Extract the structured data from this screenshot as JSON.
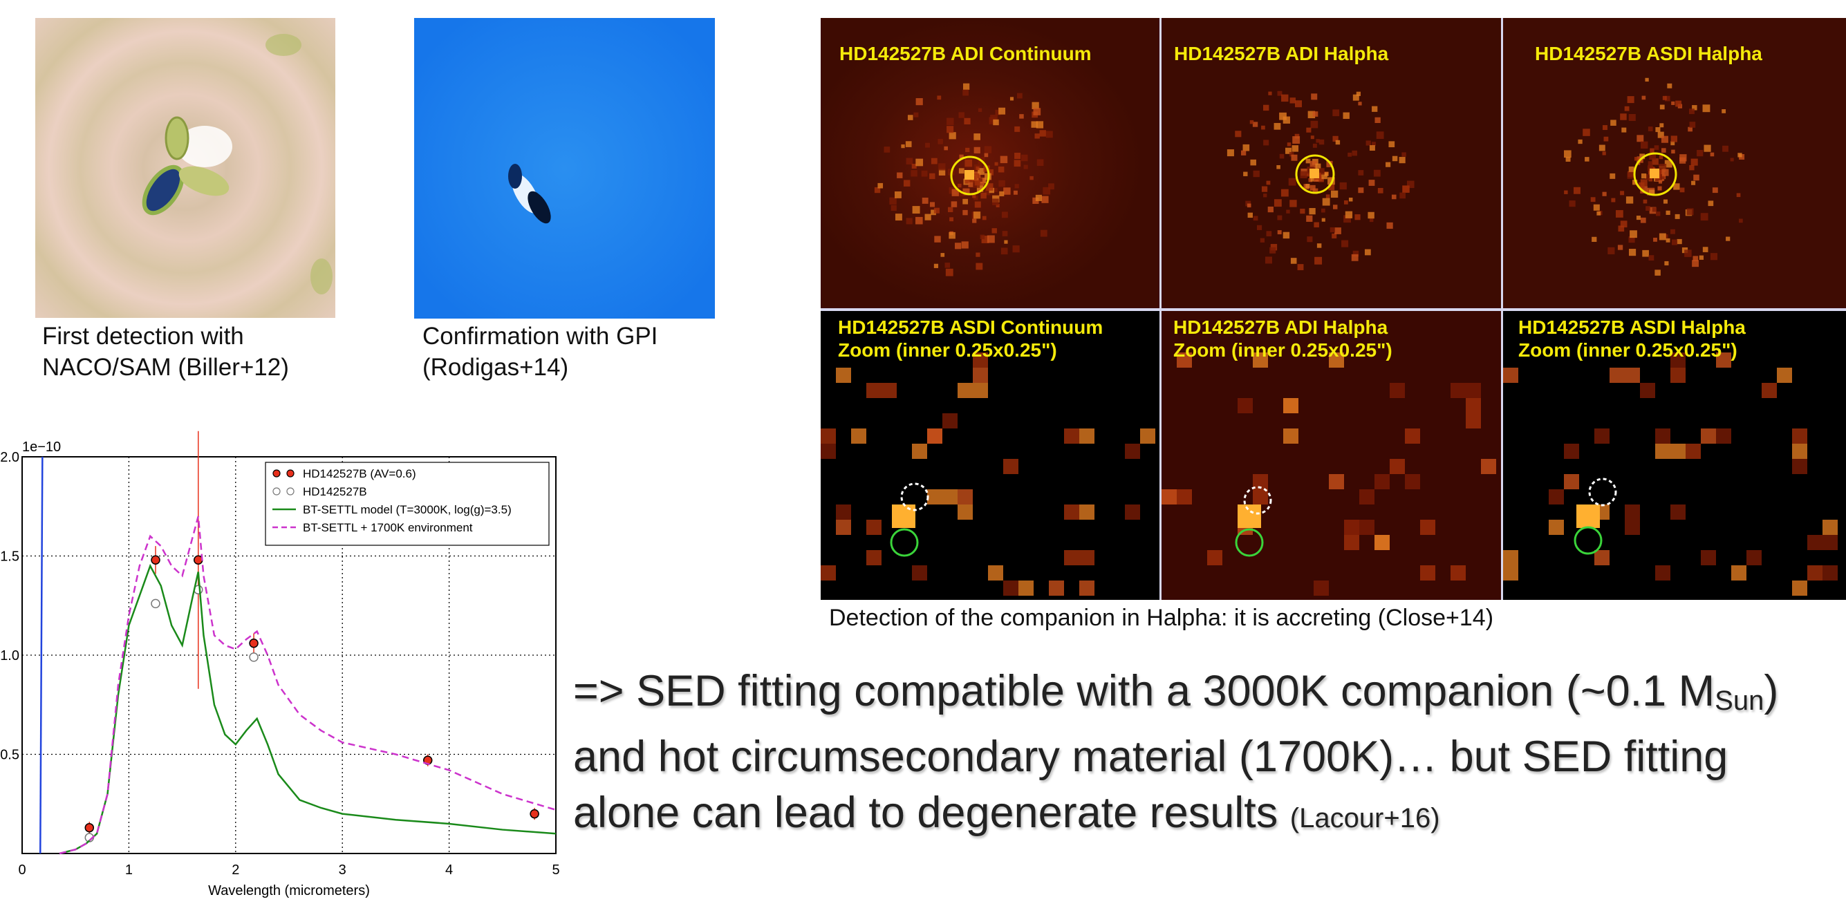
{
  "images_left": [
    {
      "caption": [
        "First detection with",
        "NACO/SAM (Biller+12)"
      ]
    },
    {
      "caption": [
        "Confirmation with GPI",
        "(Rodigas+14)"
      ]
    }
  ],
  "images_right": {
    "panels": [
      {
        "label": [
          "HD142527B ADI Continuum"
        ]
      },
      {
        "label": [
          "HD142527B ADI Halpha"
        ]
      },
      {
        "label": [
          "HD142527B ASDI Halpha"
        ]
      },
      {
        "label": [
          "HD142527B ASDI Continuum",
          "Zoom (inner 0.25x0.25\")"
        ]
      },
      {
        "label": [
          "HD142527B ADI Halpha",
          "Zoom (inner 0.25x0.25\")"
        ]
      },
      {
        "label": [
          "HD142527B ASDI Halpha",
          "Zoom (inner 0.25x0.25\")"
        ]
      }
    ],
    "caption": "Detection of the companion in Halpha: it is accreting (Close+14)"
  },
  "chart_data": {
    "type": "line",
    "x_label": "Wavelength (micrometers)",
    "y_offset_label": "1e−10",
    "xlim": [
      0,
      5
    ],
    "ylim": [
      0,
      2.0
    ],
    "xticks": [
      0,
      1,
      2,
      3,
      4,
      5
    ],
    "yticks": [
      {
        "value": 0.5,
        "label": "0.5"
      },
      {
        "value": 1.0,
        "label": "1.0"
      },
      {
        "value": 1.5,
        "label": "1.5"
      },
      {
        "value": 2.0,
        "label": "2.0"
      }
    ],
    "grid": true,
    "legend": "upper right",
    "series": [
      {
        "name": "HD142527B (AV=0.6)",
        "style": "points",
        "color": "#e8301c",
        "x": [
          0.63,
          1.25,
          1.65,
          2.17,
          3.8,
          4.8
        ],
        "values": [
          0.13,
          1.48,
          1.48,
          1.06,
          0.47,
          0.2
        ],
        "errors": [
          0.03,
          0.07,
          0.65,
          0.05,
          0.03,
          0.03
        ]
      },
      {
        "name": "HD142527B",
        "style": "open",
        "color": "#777777",
        "x": [
          0.63,
          1.25,
          1.65,
          2.17
        ],
        "values": [
          0.08,
          1.26,
          1.33,
          0.99
        ]
      },
      {
        "name": "BT-SETTL model (T=3000K, log(g)=3.5)",
        "style": "solid",
        "color": "#1a8a1a",
        "x": [
          0.35,
          0.5,
          0.6,
          0.7,
          0.8,
          0.9,
          1.0,
          1.1,
          1.2,
          1.3,
          1.4,
          1.5,
          1.6,
          1.65,
          1.7,
          1.8,
          1.9,
          2.0,
          2.1,
          2.2,
          2.3,
          2.4,
          2.6,
          2.8,
          3.0,
          3.5,
          4.0,
          4.5,
          5.0
        ],
        "values": [
          0,
          0.02,
          0.05,
          0.1,
          0.3,
          0.8,
          1.15,
          1.3,
          1.45,
          1.35,
          1.15,
          1.05,
          1.3,
          1.42,
          1.1,
          0.75,
          0.6,
          0.55,
          0.62,
          0.68,
          0.55,
          0.4,
          0.27,
          0.23,
          0.2,
          0.17,
          0.15,
          0.12,
          0.1
        ]
      },
      {
        "name": "BT-SETTL + 1700K environment",
        "style": "dashed",
        "color": "#cc33cc",
        "x": [
          0.35,
          0.5,
          0.6,
          0.7,
          0.8,
          0.9,
          1.0,
          1.1,
          1.2,
          1.3,
          1.4,
          1.5,
          1.6,
          1.65,
          1.7,
          1.8,
          1.9,
          2.0,
          2.1,
          2.2,
          2.3,
          2.4,
          2.6,
          2.8,
          3.0,
          3.5,
          4.0,
          4.5,
          5.0
        ],
        "values": [
          0,
          0.02,
          0.05,
          0.1,
          0.3,
          0.85,
          1.2,
          1.45,
          1.6,
          1.55,
          1.45,
          1.4,
          1.6,
          1.7,
          1.4,
          1.1,
          1.05,
          1.03,
          1.08,
          1.12,
          1.0,
          0.85,
          0.7,
          0.62,
          0.56,
          0.5,
          0.42,
          0.3,
          0.22
        ]
      },
      {
        "style": "solid",
        "color": "#2244dd",
        "x": [
          0.17,
          0.18,
          0.19
        ],
        "values": [
          0,
          1.0,
          2.0
        ]
      }
    ]
  },
  "conclusion": {
    "line1": "=> SED fitting compatible with a 3000K companion (~0.1 M",
    "subscript": "Sun",
    "line1_end": ")",
    "line2": "and hot circumsecondary material (1700K)… but SED fitting",
    "line3": "alone can lead to degenerate results",
    "reference": "(Lacour+16)"
  }
}
